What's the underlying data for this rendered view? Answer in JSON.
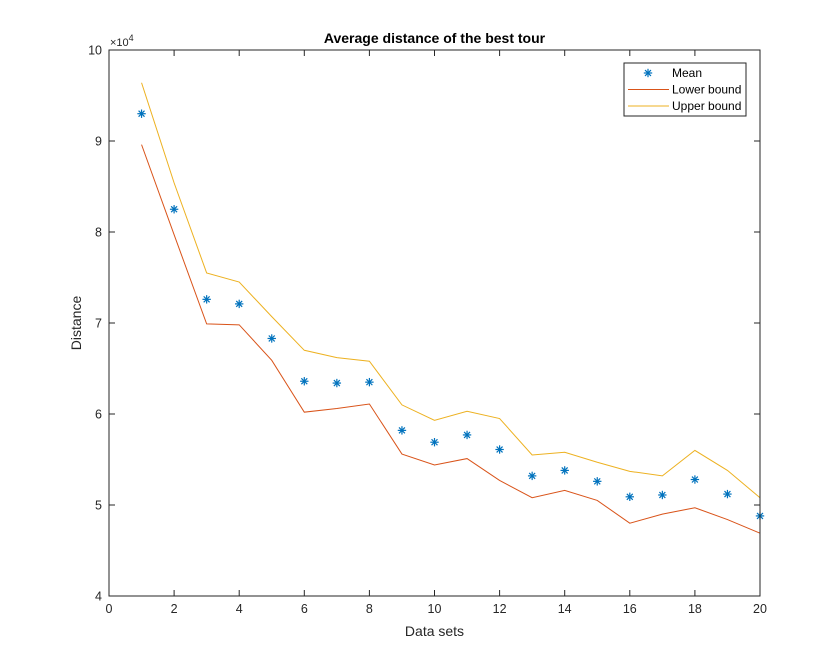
{
  "chart_data": {
    "type": "line",
    "title": "Average distance of the best tour",
    "xlabel": "Data sets",
    "ylabel": "Distance",
    "xlim": [
      0,
      20
    ],
    "ylim": [
      40000,
      100000
    ],
    "x_ticks": [
      0,
      2,
      4,
      6,
      8,
      10,
      12,
      14,
      16,
      18,
      20
    ],
    "y_tick_labels": [
      "4",
      "5",
      "6",
      "7",
      "8",
      "9",
      "10"
    ],
    "y_tick_values": [
      40000,
      50000,
      60000,
      70000,
      80000,
      90000,
      100000
    ],
    "y_multiplier_base": "×10",
    "y_multiplier_exp": "4",
    "grid": false,
    "legend_position": "top-right",
    "x": [
      1,
      2,
      3,
      4,
      5,
      6,
      7,
      8,
      9,
      10,
      11,
      12,
      13,
      14,
      15,
      16,
      17,
      18,
      19,
      20
    ],
    "series": [
      {
        "name": "Mean",
        "style": "marker-asterisk",
        "color": "#0072BD",
        "values": [
          93000,
          82500,
          72600,
          72100,
          68300,
          63600,
          63400,
          63500,
          58200,
          56900,
          57700,
          56100,
          53200,
          53800,
          52600,
          50900,
          51100,
          52800,
          51200,
          48800
        ]
      },
      {
        "name": "Lower bound",
        "style": "line",
        "color": "#D95319",
        "values": [
          89600,
          79700,
          69900,
          69800,
          65900,
          60200,
          60600,
          61100,
          55600,
          54400,
          55100,
          52700,
          50800,
          51600,
          50500,
          48000,
          49000,
          49700,
          48400,
          46900
        ]
      },
      {
        "name": "Upper bound",
        "style": "line",
        "color": "#EDB120",
        "values": [
          96400,
          85400,
          75500,
          74500,
          70700,
          67000,
          66200,
          65800,
          61000,
          59300,
          60300,
          59500,
          55500,
          55800,
          54700,
          53700,
          53200,
          56000,
          53800,
          50800
        ]
      }
    ]
  }
}
